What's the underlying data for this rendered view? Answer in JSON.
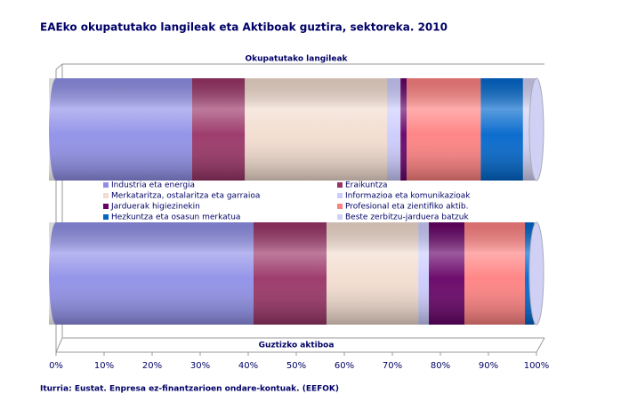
{
  "chart_data": {
    "type": "stacked-bar-100",
    "title": "EAEko okupatutako langileak eta Aktiboak guztira, sektoreka. 2010",
    "source": "Iturria: Eustat. Enpresa ez-finantzarioen ondare-kontuak. (EEFOK)",
    "categories": [
      "Okupatutako langileak",
      "Guztizko aktiboa"
    ],
    "series": [
      {
        "name": "Industria eta energia",
        "color": "#8f8fe8",
        "values": [
          28.3,
          41.1
        ]
      },
      {
        "name": "Eraikuntza",
        "color": "#993366",
        "values": [
          11,
          15.2
        ]
      },
      {
        "name": "Merkataritza, ostalaritza eta garraioa",
        "color": "#f2dccf",
        "values": [
          29.6,
          19.1
        ]
      },
      {
        "name": "Informazioa eta komunikazioak",
        "color": "#ccccff",
        "values": [
          2.8,
          2.2
        ]
      },
      {
        "name": "Jarduerak higiezinekin",
        "color": "#660066",
        "values": [
          1.3,
          7.4
        ]
      },
      {
        "name": "Profesional eta zientifiko aktib.",
        "color": "#ff8080",
        "values": [
          15.4,
          12.6
        ]
      },
      {
        "name": "Hezkuntza eta osasun merkatua",
        "color": "#0066cc",
        "values": [
          8.8,
          1.9
        ]
      },
      {
        "name": "Beste zerbitzu-jarduera batzuk",
        "color": "#d0d0f4",
        "values": [
          2.8,
          0.5
        ]
      }
    ],
    "xlim": [
      0,
      100
    ],
    "xticks": [
      {
        "value": 0,
        "label": "0%"
      },
      {
        "value": 10,
        "label": "10%"
      },
      {
        "value": 20,
        "label": "20%"
      },
      {
        "value": 30,
        "label": "30%"
      },
      {
        "value": 40,
        "label": "40%"
      },
      {
        "value": 50,
        "label": "50%"
      },
      {
        "value": 60,
        "label": "60%"
      },
      {
        "value": 70,
        "label": "70%"
      },
      {
        "value": 80,
        "label": "80%"
      },
      {
        "value": 90,
        "label": "90%"
      },
      {
        "value": 100,
        "label": "100%"
      }
    ]
  }
}
